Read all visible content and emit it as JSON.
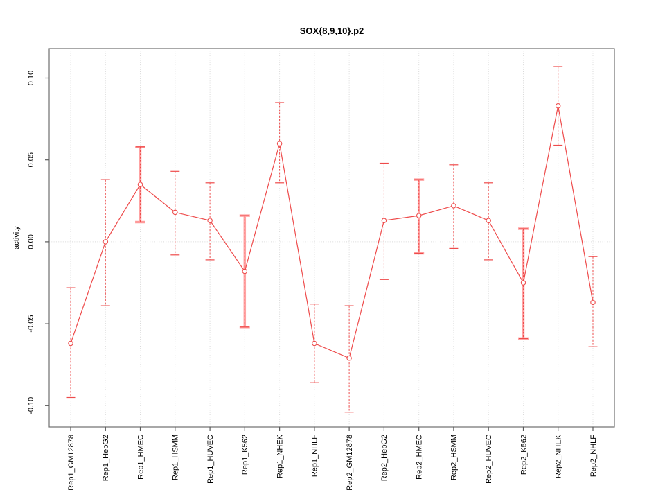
{
  "figure": {
    "title": "SOX{8,9,10}.p2",
    "ylabel": "activity"
  },
  "chart_data": {
    "type": "line",
    "title": "SOX{8,9,10}.p2",
    "xlabel": "",
    "ylabel": "activity",
    "ylim": [
      -0.113,
      0.118
    ],
    "yticks": [
      0.1,
      0.05,
      0.0,
      -0.05,
      -0.1
    ],
    "ytick_labels": [
      "0.10",
      "0.05",
      "0.00",
      "-0.05",
      "-0.10"
    ],
    "grid": "dotted vertical line at each category; dotted horizontal line at y=0",
    "legend_position": "none",
    "marker": "open-circle",
    "error_bars": true,
    "categories": [
      "Rep1_GM12878",
      "Rep1_HepG2",
      "Rep1_HMEC",
      "Rep1_HSMM",
      "Rep1_HUVEC",
      "Rep1_K562",
      "Rep1_NHEK",
      "Rep1_NHLF",
      "Rep2_GM12878",
      "Rep2_HepG2",
      "Rep2_HMEC",
      "Rep2_HSMM",
      "Rep2_HUVEC",
      "Rep2_K562",
      "Rep2_NHEK",
      "Rep2_NHLF"
    ],
    "series": [
      {
        "name": "activity",
        "values": [
          -0.062,
          0.0,
          0.035,
          0.018,
          0.013,
          -0.018,
          0.06,
          -0.062,
          -0.071,
          0.013,
          0.016,
          0.022,
          0.013,
          -0.025,
          0.083,
          -0.037
        ],
        "err_high": [
          -0.028,
          0.038,
          0.058,
          0.043,
          0.036,
          0.016,
          0.085,
          -0.038,
          -0.039,
          0.048,
          0.038,
          0.047,
          0.036,
          0.008,
          0.107,
          -0.009
        ],
        "err_low": [
          -0.095,
          -0.039,
          0.012,
          -0.008,
          -0.011,
          -0.052,
          0.036,
          -0.086,
          -0.104,
          -0.023,
          -0.007,
          -0.004,
          -0.011,
          -0.059,
          0.059,
          -0.064
        ],
        "thick_bar": [
          false,
          false,
          true,
          false,
          false,
          true,
          false,
          false,
          false,
          false,
          true,
          false,
          false,
          true,
          false,
          false
        ]
      }
    ],
    "colors": {
      "line": "#ee4b4b",
      "marker": "#ee4b4b",
      "thick_error_bar": "#ffa3a3",
      "grid": "#d9d9d9",
      "axis_box": "#6f6f6f",
      "tick": "#5a5a5a",
      "text": "#000000"
    }
  }
}
